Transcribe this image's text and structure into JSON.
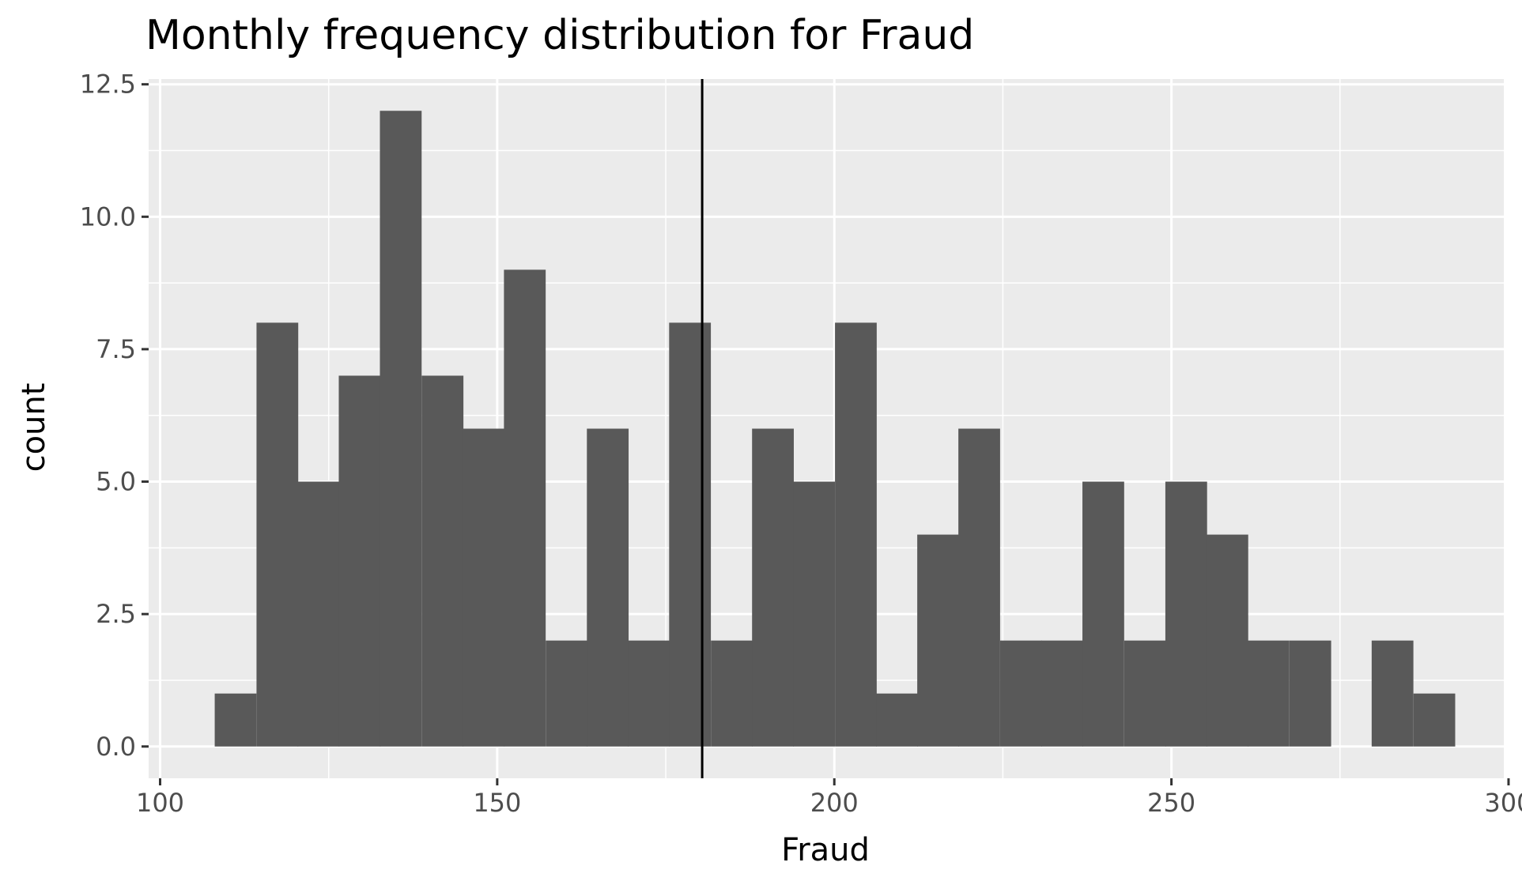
{
  "chart_data": {
    "type": "bar",
    "subtype": "histogram",
    "title": "Monthly frequency distribution for Fraud",
    "xlabel": "Fraud",
    "ylabel": "count",
    "xlim": [
      98.3,
      299.3
    ],
    "ylim": [
      -0.6,
      12.6
    ],
    "x_ticks": [
      100,
      150,
      200,
      250,
      300
    ],
    "x_tick_labels": [
      "100",
      "150",
      "200",
      "250",
      "300"
    ],
    "y_ticks": [
      0,
      2.5,
      5,
      7.5,
      10,
      12.5
    ],
    "y_tick_labels": [
      "0.0",
      "2.5",
      "5.0",
      "7.5",
      "10.0",
      "12.5"
    ],
    "bin_width": 6.13,
    "bins_start": [
      108.1,
      114.3,
      120.4,
      126.5,
      132.6,
      138.8,
      144.9,
      151.0,
      157.2,
      163.3,
      169.4,
      175.5,
      181.7,
      187.8,
      193.9,
      200.1,
      206.2,
      212.3,
      218.4,
      224.6,
      230.7,
      236.8,
      243.0,
      249.1,
      255.2,
      261.3,
      267.5,
      273.6,
      279.7,
      285.9
    ],
    "counts": [
      1,
      8,
      5,
      7,
      12,
      7,
      6,
      9,
      2,
      6,
      2,
      8,
      2,
      6,
      5,
      8,
      1,
      4,
      6,
      2,
      2,
      5,
      2,
      5,
      4,
      2,
      2,
      0,
      2,
      1
    ],
    "vline_x": 180.4,
    "grid": true,
    "colors": {
      "bar_fill": "#595959",
      "panel_background": "#ebebeb",
      "gridline": "#ffffff",
      "reference_line": "#000000"
    }
  }
}
